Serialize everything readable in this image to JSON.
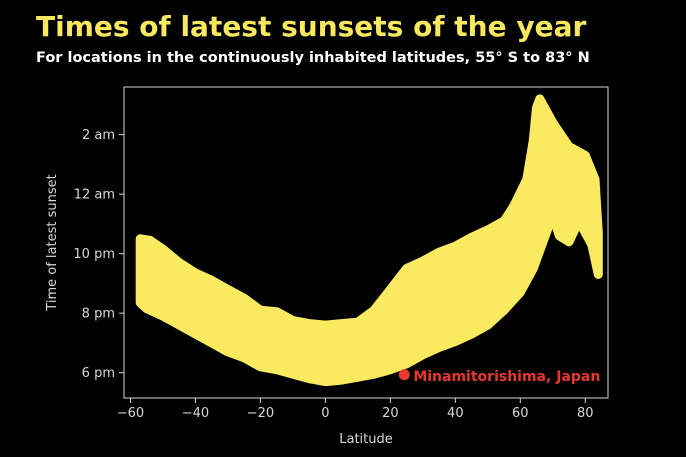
{
  "title": "Times of latest sunsets of the year",
  "subtitle": "For locations in the continuously inhabited latitudes, 55° S to 83° N",
  "colors": {
    "background": "#000000",
    "title": "#f7e85e",
    "points": "#f9ea5f",
    "highlight": "#e8382f",
    "axis": "#d8d8d8"
  },
  "chart_data": {
    "type": "scatter",
    "xlabel": "Latitude",
    "ylabel": "Time of latest sunset",
    "xlim": [
      -62,
      87
    ],
    "ylim": [
      17.15,
      27.6
    ],
    "grid": false,
    "x_ticks": [
      -60,
      -40,
      -20,
      0,
      20,
      40,
      60,
      80
    ],
    "x_tick_labels": [
      "−60",
      "−40",
      "−20",
      "0",
      "20",
      "40",
      "60",
      "80"
    ],
    "y_ticks": [
      18,
      20,
      22,
      24,
      26
    ],
    "y_tick_labels": [
      "6 pm",
      "8 pm",
      "10 pm",
      "12 am",
      "2 am"
    ],
    "upper_envelope": [
      [
        -57,
        22.5
      ],
      [
        -54,
        22.45
      ],
      [
        -50,
        22.15
      ],
      [
        -45,
        21.7
      ],
      [
        -40,
        21.35
      ],
      [
        -35,
        21.1
      ],
      [
        -30,
        20.8
      ],
      [
        -25,
        20.5
      ],
      [
        -20,
        20.1
      ],
      [
        -15,
        20.05
      ],
      [
        -10,
        19.75
      ],
      [
        -5,
        19.65
      ],
      [
        0,
        19.6
      ],
      [
        5,
        19.65
      ],
      [
        10,
        19.7
      ],
      [
        15,
        20.1
      ],
      [
        20,
        20.8
      ],
      [
        25,
        21.5
      ],
      [
        30,
        21.75
      ],
      [
        35,
        22.05
      ],
      [
        40,
        22.25
      ],
      [
        45,
        22.55
      ],
      [
        50,
        22.8
      ],
      [
        55,
        23.1
      ],
      [
        58,
        23.6
      ],
      [
        62,
        24.5
      ],
      [
        64,
        25.8
      ],
      [
        65,
        26.9
      ],
      [
        66,
        27.2
      ],
      [
        70,
        26.4
      ],
      [
        75,
        25.6
      ],
      [
        80,
        25.3
      ],
      [
        83,
        24.5
      ],
      [
        84,
        22.7
      ]
    ],
    "lower_envelope": [
      [
        84,
        21.3
      ],
      [
        82,
        22.3
      ],
      [
        78,
        23.1
      ],
      [
        75,
        22.4
      ],
      [
        72,
        22.6
      ],
      [
        70,
        23.3
      ],
      [
        67,
        22.4
      ],
      [
        64,
        21.5
      ],
      [
        60,
        20.7
      ],
      [
        55,
        20.1
      ],
      [
        50,
        19.6
      ],
      [
        45,
        19.3
      ],
      [
        40,
        19.05
      ],
      [
        35,
        18.85
      ],
      [
        30,
        18.6
      ],
      [
        25,
        18.3
      ],
      [
        20,
        18.1
      ],
      [
        15,
        17.95
      ],
      [
        10,
        17.85
      ],
      [
        5,
        17.75
      ],
      [
        0,
        17.7
      ],
      [
        -5,
        17.8
      ],
      [
        -10,
        17.95
      ],
      [
        -15,
        18.1
      ],
      [
        -20,
        18.2
      ],
      [
        -25,
        18.5
      ],
      [
        -30,
        18.7
      ],
      [
        -35,
        19.0
      ],
      [
        -40,
        19.3
      ],
      [
        -45,
        19.6
      ],
      [
        -50,
        19.9
      ],
      [
        -55,
        20.15
      ],
      [
        -57,
        20.35
      ]
    ],
    "highlight": {
      "label": "Minamitorishima, Japan",
      "x": 24.3,
      "y": 17.93
    }
  }
}
